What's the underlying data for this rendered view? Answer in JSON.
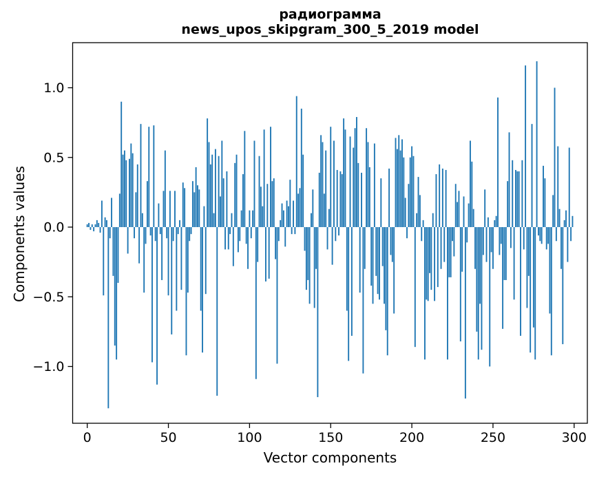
{
  "title": {
    "line1": "радиограмма",
    "line2": "news_upos_skipgram_300_5_2019 model"
  },
  "chart_data": {
    "type": "bar",
    "title": "радиограмма\nnews_upos_skipgram_300_5_2019 model",
    "xlabel": "Vector components",
    "ylabel": "Components values",
    "x_ticks": [
      0,
      50,
      100,
      150,
      200,
      250,
      300
    ],
    "y_ticks": [
      1.0,
      0.5,
      0.0,
      -0.5,
      -1.0
    ],
    "y_tick_labels": [
      "1.0",
      "0.5",
      "0.0",
      "−0.5",
      "−1.0"
    ],
    "xlim": [
      -9,
      305
    ],
    "ylim": [
      -1.41,
      1.32
    ],
    "grid": false,
    "legend": null,
    "bar_color": "#1f77b4",
    "n_components": 300,
    "values": [
      0.02,
      0.03,
      -0.02,
      0.02,
      -0.03,
      0.02,
      0.05,
      0.03,
      -0.04,
      0.19,
      -0.49,
      0.07,
      0.05,
      -1.3,
      -0.08,
      0.21,
      -0.35,
      -0.85,
      -0.95,
      -0.4,
      0.24,
      0.9,
      0.52,
      0.55,
      0.48,
      -0.19,
      0.49,
      0.6,
      0.53,
      -0.08,
      0.25,
      0.45,
      -0.26,
      0.74,
      0.1,
      -0.47,
      -0.12,
      0.33,
      0.72,
      -0.06,
      -0.97,
      0.73,
      -0.1,
      -1.13,
      0.17,
      -0.05,
      -0.38,
      0.26,
      0.55,
      -0.08,
      -0.49,
      0.26,
      -0.77,
      -0.1,
      0.26,
      -0.6,
      -0.05,
      0.05,
      -0.45,
      0.32,
      0.28,
      -0.92,
      -0.47,
      -0.1,
      -0.05,
      0.33,
      0.25,
      0.43,
      0.3,
      0.27,
      -0.6,
      -0.9,
      0.15,
      -0.48,
      0.78,
      0.61,
      0.45,
      0.52,
      0.1,
      0.56,
      -1.21,
      0.51,
      0.22,
      0.62,
      0.35,
      -0.16,
      0.4,
      -0.16,
      -0.05,
      0.1,
      -0.28,
      0.46,
      0.52,
      -0.18,
      -0.1,
      0.12,
      0.38,
      0.69,
      -0.12,
      -0.3,
      0.12,
      -0.08,
      0.12,
      0.62,
      -1.09,
      -0.25,
      0.51,
      0.29,
      0.15,
      0.7,
      -0.39,
      0.31,
      -0.37,
      0.72,
      0.33,
      0.35,
      -0.23,
      -0.98,
      -0.1,
      0.05,
      0.17,
      0.12,
      -0.14,
      0.19,
      0.15,
      0.34,
      -0.05,
      0.19,
      -0.05,
      0.94,
      0.24,
      0.28,
      0.85,
      0.52,
      -0.17,
      -0.45,
      -0.38,
      -0.55,
      0.1,
      0.27,
      -0.58,
      -0.3,
      -1.22,
      0.39,
      0.66,
      0.61,
      0.24,
      0.55,
      -0.16,
      0.13,
      0.72,
      -0.27,
      0.62,
      -0.1,
      0.41,
      -0.06,
      0.4,
      0.38,
      0.78,
      0.7,
      -0.6,
      -0.96,
      0.65,
      -0.78,
      0.57,
      0.71,
      0.79,
      0.46,
      -0.47,
      0.39,
      -1.05,
      -0.3,
      0.71,
      0.61,
      0.43,
      -0.42,
      -0.55,
      0.6,
      -0.35,
      -0.48,
      -0.52,
      0.35,
      -0.28,
      -0.55,
      -0.74,
      -0.92,
      0.42,
      -0.2,
      -0.25,
      -0.62,
      0.64,
      0.56,
      0.66,
      0.55,
      0.63,
      0.5,
      0.21,
      -0.08,
      0.31,
      0.5,
      0.58,
      0.51,
      -0.86,
      0.1,
      0.36,
      0.23,
      -0.1,
      0.05,
      -0.95,
      -0.52,
      -0.53,
      -0.33,
      -0.45,
      0.1,
      -0.53,
      0.38,
      -0.43,
      0.45,
      -0.3,
      0.42,
      -0.25,
      0.41,
      -0.95,
      -0.36,
      -0.36,
      -0.1,
      -0.21,
      0.31,
      0.18,
      0.26,
      -0.82,
      -0.32,
      0.22,
      -1.23,
      -0.11,
      0.17,
      0.62,
      0.47,
      0.13,
      -0.3,
      -0.75,
      -0.95,
      -0.55,
      -0.88,
      -0.2,
      0.27,
      -0.25,
      0.07,
      -1.0,
      -0.18,
      -0.3,
      0.05,
      0.08,
      0.93,
      -0.2,
      -0.12,
      -0.73,
      -0.38,
      -0.38,
      0.33,
      0.68,
      -0.15,
      0.48,
      -0.52,
      0.41,
      0.4,
      0.4,
      -0.78,
      0.48,
      -0.16,
      1.16,
      -0.58,
      -0.35,
      -0.9,
      0.74,
      -0.72,
      -0.95,
      1.19,
      -0.06,
      -0.1,
      -0.12,
      0.44,
      0.35,
      -0.16,
      -0.12,
      -0.62,
      -0.92,
      0.23,
      1.0,
      -0.1,
      0.58,
      0.13,
      -0.3,
      -0.84,
      0.05,
      0.12,
      -0.25,
      0.57,
      -0.1,
      0.08
    ]
  }
}
